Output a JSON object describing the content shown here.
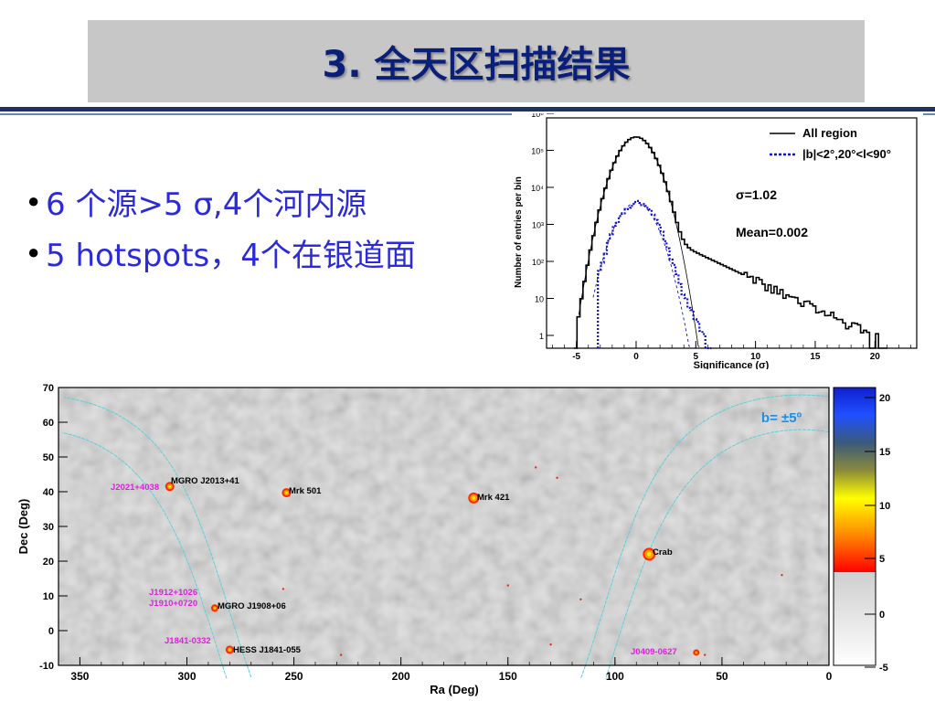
{
  "slide": {
    "title": "3. 全天区扫描结果",
    "bullets": [
      "6 个源>5 σ,4个河内源",
      "5 hotspots，4个在银道面"
    ]
  },
  "hist_plot": {
    "xlabel": "Significance (σ)",
    "ylabel": "Number of entries per bin",
    "legend": [
      "All region",
      "|b|<2°,20°<l<90°"
    ],
    "annot_sigma": "σ=1.02",
    "annot_mean": "Mean=0.002",
    "xticks": [
      "-5",
      "0",
      "5",
      "10",
      "15",
      "20"
    ],
    "yticks": [
      "10⁶",
      "10⁵",
      "10⁴",
      "10³",
      "10²",
      "10",
      "1"
    ],
    "colors": {
      "all": "#000000",
      "plane": "#1111cc"
    }
  },
  "sky_map": {
    "xlabel": "Ra (Deg)",
    "ylabel": "Dec (Deg)",
    "xticks": [
      "350",
      "300",
      "250",
      "200",
      "150",
      "100",
      "50",
      "0"
    ],
    "yticks": [
      "70",
      "60",
      "50",
      "40",
      "30",
      "20",
      "10",
      "0",
      "-10"
    ],
    "band_label": "b= ±5º",
    "colorbar_ticks": [
      "20",
      "15",
      "10",
      "5",
      "0",
      "-5"
    ],
    "sources": [
      {
        "label": "MGRO J2013+41",
        "color": "#000000",
        "ra": 308,
        "dec": 41.5
      },
      {
        "label": "J2021+4038",
        "color": "#e020e0"
      },
      {
        "label": "Mrk 501",
        "color": "#000000",
        "ra": 253.5,
        "dec": 39.7
      },
      {
        "label": "Mrk 421",
        "color": "#000000",
        "ra": 166,
        "dec": 38.2
      },
      {
        "label": "Crab",
        "color": "#000000",
        "ra": 84,
        "dec": 22
      },
      {
        "label": "J1912+1026",
        "color": "#e020e0"
      },
      {
        "label": "J1910+0720",
        "color": "#e020e0"
      },
      {
        "label": "MGRO J1908+06",
        "color": "#000000",
        "ra": 287,
        "dec": 6.5
      },
      {
        "label": "J1841-0332",
        "color": "#e020e0"
      },
      {
        "label": "HESS J1841-055",
        "color": "#000000",
        "ra": 280,
        "dec": -5.5
      },
      {
        "label": "J0409-0627",
        "color": "#e020e0",
        "ra": 62,
        "dec": -6.3
      }
    ]
  }
}
